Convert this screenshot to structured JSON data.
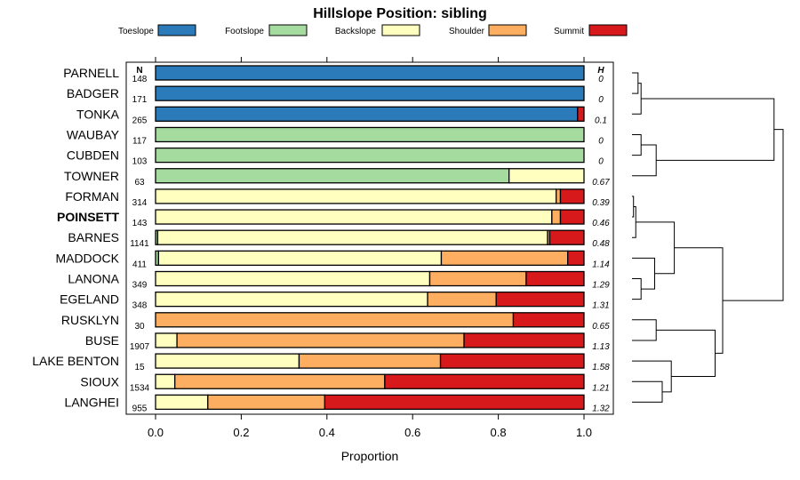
{
  "chart_data": {
    "type": "bar",
    "stacked": true,
    "orientation": "horizontal",
    "title": "Hillslope Position: sibling",
    "xlabel": "Proportion",
    "ylabel": "",
    "xlim": [
      0,
      1
    ],
    "xticks": [
      "0.0",
      "0.2",
      "0.4",
      "0.6",
      "0.8",
      "1.0"
    ],
    "n_header": "N",
    "h_header": "H",
    "legend": [
      {
        "name": "Toeslope",
        "color": "#2b7bba"
      },
      {
        "name": "Footslope",
        "color": "#a6dba0"
      },
      {
        "name": "Backslope",
        "color": "#ffffbf"
      },
      {
        "name": "Shoulder",
        "color": "#fdae61"
      },
      {
        "name": "Summit",
        "color": "#d7191c"
      }
    ],
    "categories": [
      "PARNELL",
      "BADGER",
      "TONKA",
      "WAUBAY",
      "CUBDEN",
      "TOWNER",
      "FORMAN",
      "POINSETT",
      "BARNES",
      "MADDOCK",
      "LANONA",
      "EGELAND",
      "RUSKLYN",
      "BUSE",
      "LAKE BENTON",
      "SIOUX",
      "LANGHEI"
    ],
    "highlight": "POINSETT",
    "n": [
      "148",
      "171",
      "265",
      "117",
      "103",
      "63",
      "314",
      "143",
      "1141",
      "411",
      "349",
      "348",
      "30",
      "1907",
      "15",
      "1534",
      "955"
    ],
    "h": [
      "0",
      "0",
      "0.1",
      "0",
      "0",
      "0.67",
      "0.39",
      "0.46",
      "0.48",
      "1.14",
      "1.29",
      "1.31",
      "0.65",
      "1.13",
      "1.58",
      "1.21",
      "1.32"
    ],
    "series": [
      {
        "name": "Toeslope",
        "values": [
          1,
          1,
          0.985,
          0,
          0,
          0,
          0,
          0,
          0,
          0,
          0,
          0,
          0,
          0,
          0,
          0,
          0
        ]
      },
      {
        "name": "Footslope",
        "values": [
          0,
          0,
          0,
          1,
          1,
          0.825,
          0,
          0,
          0.005,
          0.007,
          0,
          0,
          0,
          0,
          0,
          0,
          0
        ]
      },
      {
        "name": "Backslope",
        "values": [
          0,
          0,
          0,
          0,
          0,
          0.175,
          0.935,
          0.925,
          0.91,
          0.66,
          0.64,
          0.635,
          0,
          0.05,
          0.335,
          0.045,
          0.122
        ]
      },
      {
        "name": "Shoulder",
        "values": [
          0,
          0,
          0,
          0,
          0,
          0,
          0.01,
          0.02,
          0.005,
          0.295,
          0.225,
          0.16,
          0.835,
          0.67,
          0.33,
          0.49,
          0.273
        ]
      },
      {
        "name": "Summit",
        "values": [
          0,
          0,
          0.015,
          0,
          0,
          0,
          0.055,
          0.055,
          0.08,
          0.038,
          0.135,
          0.205,
          0.165,
          0.28,
          0.335,
          0.465,
          0.605
        ]
      }
    ],
    "dendrogram": {
      "leaves": [
        "PARNELL",
        "BADGER",
        "TONKA",
        "WAUBAY",
        "CUBDEN",
        "TOWNER",
        "FORMAN",
        "POINSETT",
        "BARNES",
        "MADDOCK",
        "LANONA",
        "EGELAND",
        "RUSKLYN",
        "BUSE",
        "LAKE BENTON",
        "SIOUX",
        "LANGHEI"
      ],
      "merges": [
        {
          "a": "L0",
          "b": "L1",
          "height": 0.04
        },
        {
          "a": "M0",
          "b": "L2",
          "height": 0.06
        },
        {
          "a": "L3",
          "b": "L4",
          "height": 0.06
        },
        {
          "a": "M2",
          "b": "L5",
          "height": 0.16
        },
        {
          "a": "M1",
          "b": "M3",
          "height": 0.94
        },
        {
          "a": "L6",
          "b": "L7",
          "height": 0.01
        },
        {
          "a": "M5",
          "b": "L8",
          "height": 0.025
        },
        {
          "a": "L10",
          "b": "L11",
          "height": 0.06
        },
        {
          "a": "L9",
          "b": "M7",
          "height": 0.15
        },
        {
          "a": "M6",
          "b": "M8",
          "height": 0.28
        },
        {
          "a": "L12",
          "b": "L13",
          "height": 0.16
        },
        {
          "a": "L15",
          "b": "L16",
          "height": 0.2
        },
        {
          "a": "L14",
          "b": "M11",
          "height": 0.26
        },
        {
          "a": "M10",
          "b": "M12",
          "height": 0.55
        },
        {
          "a": "M9",
          "b": "M13",
          "height": 0.6
        },
        {
          "a": "M4",
          "b": "M14",
          "height": 1.0
        }
      ]
    }
  }
}
